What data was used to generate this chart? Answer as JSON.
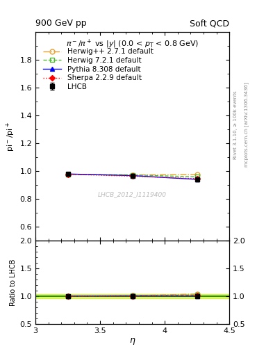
{
  "title_left": "900 GeV pp",
  "title_right": "Soft QCD",
  "plot_title": "$\\pi^-/\\pi^+$ vs $|y|$ (0.0 < $p_\\mathrm{T}$ < 0.8 GeV)",
  "ylabel_main": "$\\pi^-/\\pi^+$",
  "ylabel_main_plain": "pi-/pi+",
  "ylabel_ratio": "Ratio to LHCB",
  "xlabel": "$\\eta$",
  "right_label_top": "Rivet 3.1.10, ≥ 100k events",
  "right_label_bottom": "mcplots.cern.ch [arXiv:1306.3436]",
  "watermark": "LHCB_2012_I1119400",
  "xlim": [
    3.0,
    4.5
  ],
  "ylim_main": [
    0.5,
    2.0
  ],
  "ylim_ratio": [
    0.5,
    2.0
  ],
  "yticks_main": [
    0.6,
    0.8,
    1.0,
    1.2,
    1.4,
    1.6,
    1.8
  ],
  "yticks_ratio": [
    0.5,
    1.0,
    1.5,
    2.0
  ],
  "xticks": [
    3.0,
    3.5,
    4.0,
    4.5
  ],
  "data_lhcb": {
    "x": [
      3.25,
      3.75,
      4.25
    ],
    "y": [
      0.978,
      0.963,
      0.938
    ],
    "yerr": [
      0.012,
      0.01,
      0.014
    ],
    "color": "black",
    "marker": "s",
    "label": "LHCB"
  },
  "data_herwig_pp": {
    "x": [
      3.25,
      3.75,
      4.25
    ],
    "y": [
      0.976,
      0.972,
      0.975
    ],
    "color": "#e8a030",
    "linestyle": "-.",
    "marker": "o",
    "markerfacecolor": "none",
    "label": "Herwig++ 2.7.1 default"
  },
  "data_herwig7": {
    "x": [
      3.25,
      3.75,
      4.25
    ],
    "y": [
      0.976,
      0.972,
      0.958
    ],
    "color": "#50b830",
    "linestyle": "--",
    "marker": "s",
    "markerfacecolor": "none",
    "label": "Herwig 7.2.1 default"
  },
  "data_pythia": {
    "x": [
      3.25,
      3.75,
      4.25
    ],
    "y": [
      0.979,
      0.967,
      0.94
    ],
    "color": "blue",
    "linestyle": "-",
    "marker": "^",
    "label": "Pythia 8.308 default"
  },
  "data_sherpa": {
    "x": [
      3.25,
      3.75,
      4.25
    ],
    "y": [
      0.977,
      0.963,
      0.945
    ],
    "color": "red",
    "linestyle": ":",
    "marker": "D",
    "markersize": 4,
    "label": "Sherpa 2.2.9 default"
  },
  "ratio_herwig_pp": {
    "x": [
      3.25,
      3.75,
      4.25
    ],
    "y": [
      0.998,
      1.009,
      1.039
    ],
    "color": "#e8a030",
    "linestyle": "-.",
    "marker": "o",
    "markerfacecolor": "none"
  },
  "ratio_herwig7": {
    "x": [
      3.25,
      3.75,
      4.25
    ],
    "y": [
      0.998,
      1.009,
      1.021
    ],
    "color": "#50b830",
    "linestyle": "--",
    "marker": "s",
    "markerfacecolor": "none"
  },
  "ratio_pythia": {
    "x": [
      3.25,
      3.75,
      4.25
    ],
    "y": [
      1.001,
      1.004,
      1.002
    ],
    "color": "blue",
    "linestyle": "-",
    "marker": "^"
  },
  "ratio_sherpa": {
    "x": [
      3.25,
      3.75,
      4.25
    ],
    "y": [
      0.999,
      1.0,
      1.007
    ],
    "color": "red",
    "linestyle": ":",
    "marker": "D",
    "markersize": 4
  },
  "band_y1": 0.96,
  "band_y2": 1.04,
  "band_color": "#c8f000"
}
